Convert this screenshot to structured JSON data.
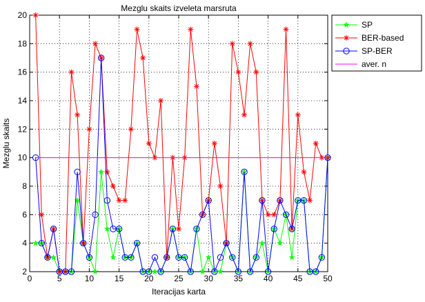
{
  "chart_data": {
    "type": "line",
    "title": "Mezglu skaits izveleta marsruta",
    "xlabel": "Iteracijas karta",
    "ylabel": "Mezglu skaits",
    "xlim": [
      0,
      50
    ],
    "ylim": [
      2,
      20
    ],
    "xticks": [
      0,
      5,
      10,
      15,
      20,
      25,
      30,
      35,
      40,
      45,
      50
    ],
    "yticks": [
      2,
      4,
      6,
      8,
      10,
      12,
      14,
      16,
      18,
      20
    ],
    "grid": true,
    "legend_position": "top-right",
    "x": [
      1,
      2,
      3,
      4,
      5,
      6,
      7,
      8,
      9,
      10,
      11,
      12,
      13,
      14,
      15,
      16,
      17,
      18,
      19,
      20,
      21,
      22,
      23,
      24,
      25,
      26,
      27,
      28,
      29,
      30,
      31,
      32,
      33,
      34,
      35,
      36,
      37,
      38,
      39,
      40,
      41,
      42,
      43,
      44,
      45,
      46,
      47,
      48,
      49,
      50
    ],
    "series": [
      {
        "name": "SP",
        "color": "#00ff00",
        "marker": "star",
        "values": [
          4,
          4,
          3,
          3,
          2,
          2,
          2,
          7,
          4,
          3,
          2,
          9,
          5,
          3,
          5,
          3,
          3,
          4,
          2,
          2,
          2,
          2,
          3,
          5,
          3,
          3,
          2,
          5,
          2,
          3,
          2,
          2,
          4,
          3,
          2,
          9,
          2,
          3,
          4,
          2,
          5,
          4,
          6,
          3,
          7,
          7,
          2,
          2,
          3,
          10
        ]
      },
      {
        "name": "BER-based",
        "color": "#ff0000",
        "marker": "asterisk",
        "values": [
          20,
          6,
          3,
          5,
          2,
          2,
          16,
          13,
          4,
          12,
          18,
          17,
          9,
          8,
          7,
          7,
          12,
          19,
          17,
          11,
          10,
          14,
          3,
          10,
          5,
          10,
          19,
          15,
          6,
          7,
          11,
          8,
          4,
          18,
          16,
          13,
          18,
          16,
          7,
          6,
          6,
          7,
          19,
          5,
          13,
          9,
          7,
          11,
          10,
          10
        ]
      },
      {
        "name": "SP-BER",
        "color": "#0000ff",
        "marker": "circle",
        "values": [
          10,
          4,
          3,
          5,
          2,
          2,
          2,
          9,
          4,
          3,
          6,
          17,
          7,
          5,
          5,
          3,
          3,
          4,
          2,
          2,
          3,
          2,
          3,
          5,
          3,
          3,
          2,
          5,
          6,
          7,
          2,
          3,
          4,
          3,
          2,
          9,
          2,
          3,
          7,
          2,
          5,
          7,
          6,
          5,
          7,
          7,
          2,
          2,
          3,
          10
        ]
      },
      {
        "name": "aver. n",
        "color": "#ff00ff",
        "marker": "none",
        "values": [
          10,
          10,
          10,
          10,
          10,
          10,
          10,
          10,
          10,
          10,
          10,
          10,
          10,
          10,
          10,
          10,
          10,
          10,
          10,
          10,
          10,
          10,
          10,
          10,
          10,
          10,
          10,
          10,
          10,
          10,
          10,
          10,
          10,
          10,
          10,
          10,
          10,
          10,
          10,
          10,
          10,
          10,
          10,
          10,
          10,
          10,
          10,
          10,
          10,
          10
        ]
      }
    ]
  }
}
